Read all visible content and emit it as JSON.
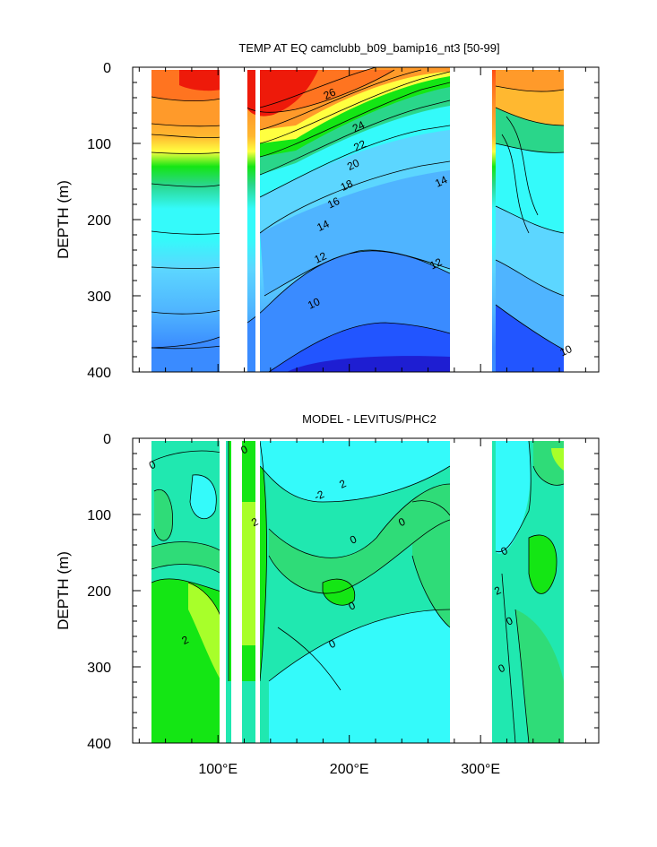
{
  "chart_data": [
    {
      "type": "heatmap",
      "title": "TEMP AT EQ camclubb_b09_bamip16_nt3 [50-99]",
      "ylabel": "DEPTH (m)",
      "xlim": [
        35,
        390
      ],
      "ylim": [
        0,
        400
      ],
      "y_reversed": true,
      "yticks": [
        0,
        100,
        200,
        300,
        400
      ],
      "xticks": [
        100,
        200,
        300
      ],
      "xticklabels": [
        "100°E",
        "200°E",
        "300°E"
      ],
      "data_extent_x": [
        43,
        368
      ],
      "land_gaps": [
        [
          97,
          113
        ],
        [
          123,
          128
        ],
        [
          127,
          131
        ],
        [
          279,
          313
        ]
      ],
      "contour_levels": [
        10,
        11,
        12,
        13,
        14,
        15,
        16,
        17,
        18,
        19,
        20,
        21,
        22,
        23,
        24,
        25,
        26,
        27,
        28
      ],
      "contour_labels": [
        {
          "text": "26",
          "x": 185,
          "y": 35
        },
        {
          "text": "24",
          "x": 207,
          "y": 78
        },
        {
          "text": "22",
          "x": 208,
          "y": 103
        },
        {
          "text": "20",
          "x": 203,
          "y": 128
        },
        {
          "text": "18",
          "x": 198,
          "y": 155
        },
        {
          "text": "16",
          "x": 188,
          "y": 178
        },
        {
          "text": "14",
          "x": 180,
          "y": 208
        },
        {
          "text": "14",
          "x": 270,
          "y": 150
        },
        {
          "text": "12",
          "x": 178,
          "y": 250
        },
        {
          "text": "12",
          "x": 266,
          "y": 258
        },
        {
          "text": "10",
          "x": 173,
          "y": 310
        },
        {
          "text": "10",
          "x": 365,
          "y": 372
        }
      ],
      "colors": [
        "#1e1ed2",
        "#2255ff",
        "#3a8bff",
        "#4fb4ff",
        "#5cd6ff",
        "#34fafa",
        "#22e8b6",
        "#2ad68a",
        "#3ccc5a",
        "#14e614",
        "#a8ff2a",
        "#ffff40",
        "#ffdd33",
        "#ffb830",
        "#ff9a2a",
        "#ff7420",
        "#ff4d14",
        "#ee1a0a"
      ]
    },
    {
      "type": "heatmap",
      "title": "MODEL - LEVITUS/PHC2",
      "ylabel": "DEPTH (m)",
      "xlim": [
        35,
        390
      ],
      "ylim": [
        0,
        400
      ],
      "y_reversed": true,
      "yticks": [
        0,
        100,
        200,
        300,
        400
      ],
      "xticks": [
        100,
        200,
        300
      ],
      "xticklabels": [
        "100°E",
        "200°E",
        "300°E"
      ],
      "data_extent_x": [
        43,
        368
      ],
      "contour_levels": [
        -2,
        0,
        2
      ],
      "contour_labels": [
        {
          "text": "0",
          "x": 50,
          "y": 35
        },
        {
          "text": "0",
          "x": 120,
          "y": 15
        },
        {
          "text": "2",
          "x": 128,
          "y": 110
        },
        {
          "text": "-2",
          "x": 177,
          "y": 75
        },
        {
          "text": "2",
          "x": 195,
          "y": 60
        },
        {
          "text": "0",
          "x": 240,
          "y": 110
        },
        {
          "text": "0",
          "x": 203,
          "y": 133
        },
        {
          "text": "0",
          "x": 202,
          "y": 220
        },
        {
          "text": "2",
          "x": 75,
          "y": 265
        },
        {
          "text": "0",
          "x": 187,
          "y": 270
        },
        {
          "text": "0",
          "x": 318,
          "y": 148
        },
        {
          "text": "2",
          "x": 313,
          "y": 200
        },
        {
          "text": "0",
          "x": 322,
          "y": 240
        },
        {
          "text": "0",
          "x": 316,
          "y": 302
        }
      ],
      "colors": [
        "#34fafa",
        "#20e8b0",
        "#2fdc78",
        "#14e614",
        "#a8ff2a"
      ]
    }
  ]
}
